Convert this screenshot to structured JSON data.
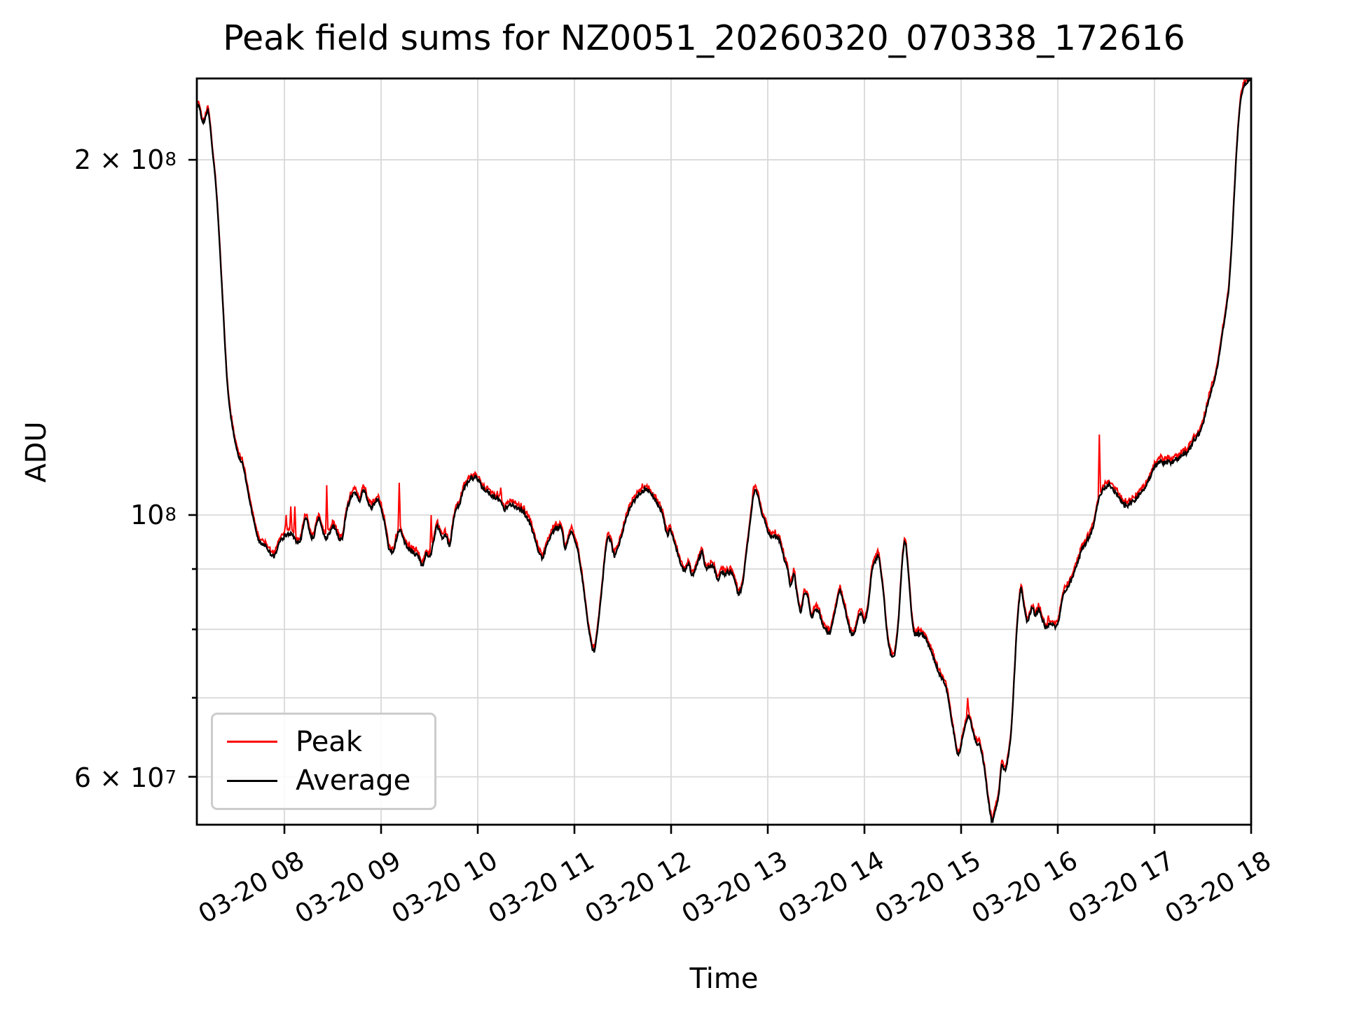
{
  "chart_data": {
    "type": "line",
    "title": "Peak field sums for NZ0051_20260320_070338_172616",
    "xlabel": "Time",
    "ylabel": "ADU",
    "y_scale": "log",
    "grid": true,
    "legend_position": "lower left",
    "x_unit": "hours of day on 03-20",
    "x_range_hours": [
      7.094,
      18.0
    ],
    "ylim": [
      54700000,
      234400000
    ],
    "x_ticks": [
      {
        "label": "03-20 08",
        "hour": 8
      },
      {
        "label": "03-20 09",
        "hour": 9
      },
      {
        "label": "03-20 10",
        "hour": 10
      },
      {
        "label": "03-20 11",
        "hour": 11
      },
      {
        "label": "03-20 12",
        "hour": 12
      },
      {
        "label": "03-20 13",
        "hour": 13
      },
      {
        "label": "03-20 14",
        "hour": 14
      },
      {
        "label": "03-20 15",
        "hour": 15
      },
      {
        "label": "03-20 16",
        "hour": 16
      },
      {
        "label": "03-20 17",
        "hour": 17
      },
      {
        "label": "03-20 18",
        "hour": 18
      }
    ],
    "y_ticks": [
      {
        "coeff": "2 × 10",
        "exp": "8",
        "value": 200000000
      },
      {
        "coeff": "10",
        "exp": "8",
        "value": 100000000
      },
      {
        "coeff": "6 × 10",
        "exp": "7",
        "value": 60000000
      }
    ],
    "y_minor_ticks_value": [
      90000000,
      80000000,
      70000000
    ],
    "series": [
      {
        "name": "Peak",
        "color": "#ff0000",
        "relation": "equals Average plus ~0.7% with narrow transient spikes",
        "spikes_hour_top1e7": [
          [
            8.02,
            10.0
          ],
          [
            8.065,
            10.17
          ],
          [
            8.105,
            10.17
          ],
          [
            8.44,
            10.6
          ],
          [
            8.64,
            10.0
          ],
          [
            9.19,
            10.65
          ],
          [
            9.52,
            10.0
          ],
          [
            9.855,
            10.62
          ],
          [
            10.24,
            10.55
          ],
          [
            10.33,
            9.62
          ],
          [
            12.855,
            10.58
          ],
          [
            15.07,
            7.0
          ],
          [
            15.8,
            8.35
          ],
          [
            15.9,
            8.22
          ],
          [
            16.43,
            11.7
          ],
          [
            17.57,
            12.72
          ]
        ]
      },
      {
        "name": "Average",
        "color": "#000000",
        "anchors_hour_adu1e7": [
          [
            7.094,
            22.1
          ],
          [
            7.11,
            22.3
          ],
          [
            7.16,
            21.6
          ],
          [
            7.21,
            22.0
          ],
          [
            7.26,
            20.2
          ],
          [
            7.3,
            18.6
          ],
          [
            7.35,
            15.8
          ],
          [
            7.41,
            12.9
          ],
          [
            7.46,
            11.9
          ],
          [
            7.52,
            11.3
          ],
          [
            7.57,
            11.05
          ],
          [
            7.62,
            10.5
          ],
          [
            7.67,
            10.0
          ],
          [
            7.72,
            9.6
          ],
          [
            7.77,
            9.45
          ],
          [
            7.82,
            9.35
          ],
          [
            7.86,
            9.25
          ],
          [
            7.9,
            9.2
          ],
          [
            7.94,
            9.45
          ],
          [
            7.98,
            9.55
          ],
          [
            8.02,
            9.6
          ],
          [
            8.06,
            9.65
          ],
          [
            8.1,
            9.55
          ],
          [
            8.14,
            9.45
          ],
          [
            8.17,
            9.55
          ],
          [
            8.2,
            9.8
          ],
          [
            8.23,
            9.9
          ],
          [
            8.26,
            9.7
          ],
          [
            8.3,
            9.55
          ],
          [
            8.33,
            9.8
          ],
          [
            8.36,
            9.9
          ],
          [
            8.4,
            9.65
          ],
          [
            8.44,
            9.55
          ],
          [
            8.48,
            9.7
          ],
          [
            8.52,
            9.78
          ],
          [
            8.56,
            9.65
          ],
          [
            8.6,
            9.6
          ],
          [
            8.63,
            9.95
          ],
          [
            8.66,
            10.2
          ],
          [
            8.7,
            10.4
          ],
          [
            8.74,
            10.45
          ],
          [
            8.78,
            10.32
          ],
          [
            8.83,
            10.5
          ],
          [
            8.88,
            10.17
          ],
          [
            8.93,
            10.2
          ],
          [
            8.97,
            10.24
          ],
          [
            9.03,
            9.93
          ],
          [
            9.08,
            9.38
          ],
          [
            9.13,
            9.36
          ],
          [
            9.19,
            9.75
          ],
          [
            9.24,
            9.5
          ],
          [
            9.28,
            9.4
          ],
          [
            9.33,
            9.33
          ],
          [
            9.38,
            9.24
          ],
          [
            9.43,
            9.1
          ],
          [
            9.47,
            9.3
          ],
          [
            9.5,
            9.2
          ],
          [
            9.54,
            9.45
          ],
          [
            9.57,
            9.7
          ],
          [
            9.6,
            9.73
          ],
          [
            9.63,
            9.54
          ],
          [
            9.67,
            9.6
          ],
          [
            9.71,
            9.43
          ],
          [
            9.75,
            9.93
          ],
          [
            9.78,
            10.17
          ],
          [
            9.81,
            10.21
          ],
          [
            9.85,
            10.5
          ],
          [
            9.89,
            10.65
          ],
          [
            9.95,
            10.73
          ],
          [
            10.0,
            10.7
          ],
          [
            10.05,
            10.55
          ],
          [
            10.1,
            10.45
          ],
          [
            10.16,
            10.35
          ],
          [
            10.22,
            10.3
          ],
          [
            10.28,
            10.12
          ],
          [
            10.33,
            10.2
          ],
          [
            10.38,
            10.15
          ],
          [
            10.43,
            10.1
          ],
          [
            10.48,
            10.0
          ],
          [
            10.53,
            9.85
          ],
          [
            10.58,
            9.6
          ],
          [
            10.63,
            9.3
          ],
          [
            10.67,
            9.2
          ],
          [
            10.72,
            9.45
          ],
          [
            10.78,
            9.7
          ],
          [
            10.83,
            9.8
          ],
          [
            10.87,
            9.75
          ],
          [
            10.9,
            9.35
          ],
          [
            10.93,
            9.5
          ],
          [
            10.96,
            9.68
          ],
          [
            11.0,
            9.55
          ],
          [
            11.05,
            9.2
          ],
          [
            11.1,
            8.6
          ],
          [
            11.15,
            8.0
          ],
          [
            11.2,
            7.66
          ],
          [
            11.24,
            8.0
          ],
          [
            11.28,
            8.6
          ],
          [
            11.33,
            9.45
          ],
          [
            11.37,
            9.55
          ],
          [
            11.41,
            9.25
          ],
          [
            11.45,
            9.4
          ],
          [
            11.5,
            9.7
          ],
          [
            11.56,
            10.05
          ],
          [
            11.62,
            10.3
          ],
          [
            11.68,
            10.44
          ],
          [
            11.73,
            10.46
          ],
          [
            11.78,
            10.44
          ],
          [
            11.83,
            10.3
          ],
          [
            11.88,
            10.17
          ],
          [
            11.92,
            9.95
          ],
          [
            11.96,
            9.6
          ],
          [
            11.99,
            9.7
          ],
          [
            12.02,
            9.6
          ],
          [
            12.06,
            9.35
          ],
          [
            12.1,
            9.1
          ],
          [
            12.14,
            8.95
          ],
          [
            12.18,
            9.08
          ],
          [
            12.21,
            8.92
          ],
          [
            12.25,
            9.0
          ],
          [
            12.28,
            9.12
          ],
          [
            12.32,
            9.3
          ],
          [
            12.36,
            9.0
          ],
          [
            12.41,
            9.02
          ],
          [
            12.45,
            8.98
          ],
          [
            12.49,
            8.78
          ],
          [
            12.52,
            8.98
          ],
          [
            12.56,
            8.92
          ],
          [
            12.6,
            8.92
          ],
          [
            12.64,
            8.88
          ],
          [
            12.67,
            8.7
          ],
          [
            12.7,
            8.58
          ],
          [
            12.74,
            8.75
          ],
          [
            12.78,
            9.3
          ],
          [
            12.82,
            9.9
          ],
          [
            12.86,
            10.48
          ],
          [
            12.9,
            10.35
          ],
          [
            12.94,
            10.0
          ],
          [
            12.98,
            9.8
          ],
          [
            13.02,
            9.6
          ],
          [
            13.06,
            9.58
          ],
          [
            13.09,
            9.6
          ],
          [
            13.13,
            9.45
          ],
          [
            13.17,
            9.2
          ],
          [
            13.21,
            8.95
          ],
          [
            13.24,
            8.7
          ],
          [
            13.27,
            8.95
          ],
          [
            13.3,
            8.6
          ],
          [
            13.34,
            8.3
          ],
          [
            13.38,
            8.6
          ],
          [
            13.41,
            8.55
          ],
          [
            13.45,
            8.2
          ],
          [
            13.49,
            8.28
          ],
          [
            13.53,
            8.25
          ],
          [
            13.57,
            8.05
          ],
          [
            13.61,
            8.0
          ],
          [
            13.64,
            7.95
          ],
          [
            13.68,
            8.2
          ],
          [
            13.72,
            8.5
          ],
          [
            13.75,
            8.64
          ],
          [
            13.79,
            8.4
          ],
          [
            13.83,
            8.1
          ],
          [
            13.87,
            7.9
          ],
          [
            13.9,
            7.95
          ],
          [
            13.94,
            8.2
          ],
          [
            13.97,
            8.25
          ],
          [
            14.0,
            8.1
          ],
          [
            14.04,
            8.4
          ],
          [
            14.08,
            9.0
          ],
          [
            14.12,
            9.15
          ],
          [
            14.15,
            9.17
          ],
          [
            14.19,
            8.7
          ],
          [
            14.23,
            8.0
          ],
          [
            14.27,
            7.62
          ],
          [
            14.31,
            7.6
          ],
          [
            14.35,
            8.1
          ],
          [
            14.39,
            9.1
          ],
          [
            14.42,
            9.5
          ],
          [
            14.45,
            9.0
          ],
          [
            14.49,
            8.2
          ],
          [
            14.52,
            7.92
          ],
          [
            14.56,
            7.95
          ],
          [
            14.6,
            7.92
          ],
          [
            14.64,
            7.85
          ],
          [
            14.68,
            7.7
          ],
          [
            14.72,
            7.55
          ],
          [
            14.77,
            7.35
          ],
          [
            14.81,
            7.25
          ],
          [
            14.85,
            7.12
          ],
          [
            14.89,
            6.8
          ],
          [
            14.93,
            6.5
          ],
          [
            14.97,
            6.25
          ],
          [
            15.01,
            6.45
          ],
          [
            15.05,
            6.65
          ],
          [
            15.08,
            6.74
          ],
          [
            15.12,
            6.55
          ],
          [
            15.16,
            6.42
          ],
          [
            15.2,
            6.35
          ],
          [
            15.24,
            6.1
          ],
          [
            15.28,
            5.75
          ],
          [
            15.32,
            5.5
          ],
          [
            15.35,
            5.58
          ],
          [
            15.39,
            5.8
          ],
          [
            15.42,
            6.14
          ],
          [
            15.45,
            6.08
          ],
          [
            15.48,
            6.2
          ],
          [
            15.52,
            6.6
          ],
          [
            15.55,
            7.3
          ],
          [
            15.58,
            8.1
          ],
          [
            15.62,
            8.68
          ],
          [
            15.65,
            8.4
          ],
          [
            15.68,
            8.13
          ],
          [
            15.71,
            8.25
          ],
          [
            15.74,
            8.35
          ],
          [
            15.77,
            8.2
          ],
          [
            15.8,
            8.3
          ],
          [
            15.84,
            8.12
          ],
          [
            15.88,
            8.05
          ],
          [
            15.92,
            8.12
          ],
          [
            15.96,
            8.05
          ],
          [
            16.0,
            8.1
          ],
          [
            16.05,
            8.5
          ],
          [
            16.12,
            8.72
          ],
          [
            16.2,
            9.1
          ],
          [
            16.26,
            9.4
          ],
          [
            16.31,
            9.55
          ],
          [
            16.36,
            9.75
          ],
          [
            16.41,
            10.2
          ],
          [
            16.44,
            10.4
          ],
          [
            16.47,
            10.5
          ],
          [
            16.51,
            10.6
          ],
          [
            16.55,
            10.6
          ],
          [
            16.6,
            10.45
          ],
          [
            16.65,
            10.3
          ],
          [
            16.71,
            10.18
          ],
          [
            16.75,
            10.22
          ],
          [
            16.8,
            10.3
          ],
          [
            16.85,
            10.42
          ],
          [
            16.9,
            10.55
          ],
          [
            16.95,
            10.75
          ],
          [
            17.0,
            10.97
          ],
          [
            17.05,
            11.05
          ],
          [
            17.1,
            11.07
          ],
          [
            17.15,
            11.09
          ],
          [
            17.2,
            11.15
          ],
          [
            17.25,
            11.22
          ],
          [
            17.3,
            11.23
          ],
          [
            17.34,
            11.28
          ],
          [
            17.38,
            11.43
          ],
          [
            17.42,
            11.57
          ],
          [
            17.46,
            11.7
          ],
          [
            17.5,
            11.95
          ],
          [
            17.54,
            12.3
          ],
          [
            17.58,
            12.65
          ],
          [
            17.62,
            13.0
          ],
          [
            17.66,
            13.5
          ],
          [
            17.7,
            14.2
          ],
          [
            17.74,
            14.9
          ],
          [
            17.77,
            15.6
          ],
          [
            17.8,
            17.0
          ],
          [
            17.83,
            19.0
          ],
          [
            17.86,
            21.0
          ],
          [
            17.89,
            22.4
          ],
          [
            17.92,
            23.0
          ],
          [
            17.95,
            23.25
          ],
          [
            18.0,
            23.35
          ]
        ]
      }
    ],
    "colors": {
      "peak": "#ff0000",
      "average": "#000000",
      "grid": "#d9d9d9",
      "spine": "#000000",
      "background": "#ffffff",
      "legend_border": "#cccccc"
    }
  }
}
